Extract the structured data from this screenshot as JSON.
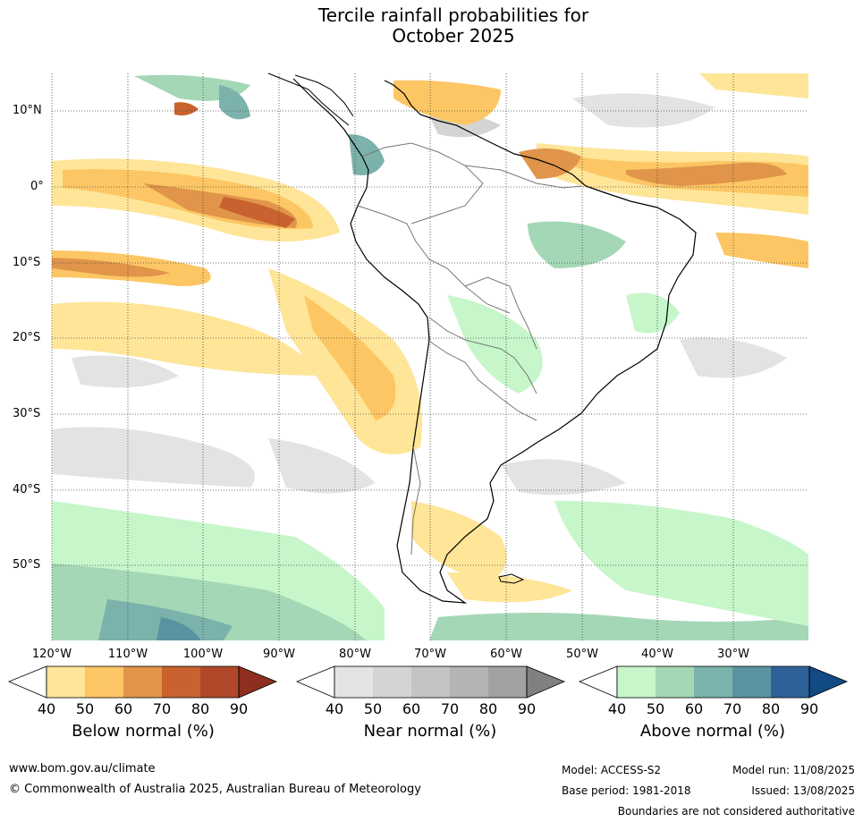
{
  "title": {
    "line1": "Tercile rainfall probabilities for",
    "line2": "October 2025"
  },
  "map": {
    "region": "South America",
    "latitude_labels": [
      "10°N",
      "0°",
      "10°S",
      "20°S",
      "30°S",
      "40°S",
      "50°S"
    ],
    "longitude_labels": [
      "120°W",
      "110°W",
      "100°W",
      "90°W",
      "80°W",
      "70°W",
      "60°W",
      "50°W",
      "40°W",
      "30°W"
    ]
  },
  "colorbars": [
    {
      "name": "Below normal (%)",
      "ticks": [
        "40",
        "50",
        "60",
        "70",
        "80",
        "90"
      ],
      "colors": [
        "#ffffff",
        "#fee597",
        "#fdc664",
        "#e0954a",
        "#c9622f",
        "#b1482a",
        "#8e2e1f"
      ]
    },
    {
      "name": "Near normal (%)",
      "ticks": [
        "40",
        "50",
        "60",
        "70",
        "80",
        "90"
      ],
      "colors": [
        "#ffffff",
        "#e3e3e3",
        "#d4d4d4",
        "#c4c4c4",
        "#b4b4b4",
        "#a2a2a2",
        "#808080"
      ]
    },
    {
      "name": "Above normal (%)",
      "ticks": [
        "40",
        "50",
        "60",
        "70",
        "80",
        "90"
      ],
      "colors": [
        "#ffffff",
        "#c6f6c9",
        "#a4d7b6",
        "#7bb2ab",
        "#5a93a0",
        "#2f6199",
        "#114a84"
      ]
    }
  ],
  "footer": {
    "website": "www.bom.gov.au/climate",
    "copyright": "© Commonwealth of Australia 2025, Australian Bureau of Meteorology",
    "model": "Model: ACCESS-S2",
    "base_period": "Base period: 1981-2018",
    "model_run": "Model run: 11/08/2025",
    "issued": "Issued: 13/08/2025",
    "disclaimer": "Boundaries are not considered authoritative"
  }
}
